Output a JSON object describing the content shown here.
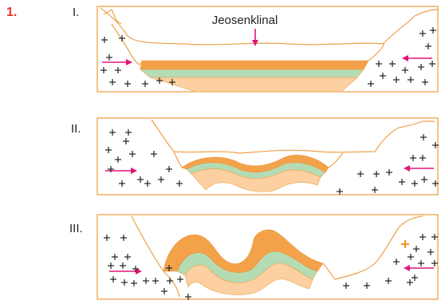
{
  "figure_number": "1.",
  "panels": [
    {
      "label": "I.",
      "annotation": "Jeosenklinal"
    },
    {
      "label": "II."
    },
    {
      "label": "III."
    }
  ]
}
